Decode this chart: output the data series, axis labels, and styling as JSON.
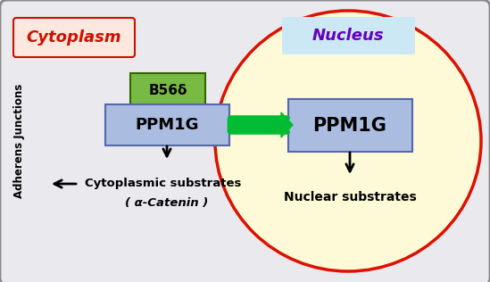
{
  "fig_width": 5.49,
  "fig_height": 3.16,
  "dpi": 100,
  "bg_color": "#e8e8ec",
  "outer_box_facecolor": "#eaeaee",
  "outer_box_edgecolor": "#888888",
  "cytoplasm_label": "Cytoplasm",
  "cytoplasm_bg": "#fde8e0",
  "cytoplasm_text_color": "#cc1100",
  "nucleus_label": "Nucleus",
  "nucleus_text_color": "#6600bb",
  "nucleus_bg": "#fefad8",
  "nucleus_border_color": "#dd1100",
  "ppm1g_left_label": "PPM1G",
  "ppm1g_right_label": "PPM1G",
  "b56d_label": "B56δ",
  "ppm1g_box_color": "#aabde0",
  "b56d_box_color": "#77bb44",
  "cyto_substrate_line1": "Cytoplasmic substrates",
  "cyto_substrate_line2": "( α-Catenin )",
  "nuclear_substrate": "Nuclear substrates",
  "adherens_label": "Adherens Junctions",
  "arrow_color": "#00bb33",
  "black_arrow_color": "#000000",
  "nucleus_bg_label": "#cce8f5"
}
